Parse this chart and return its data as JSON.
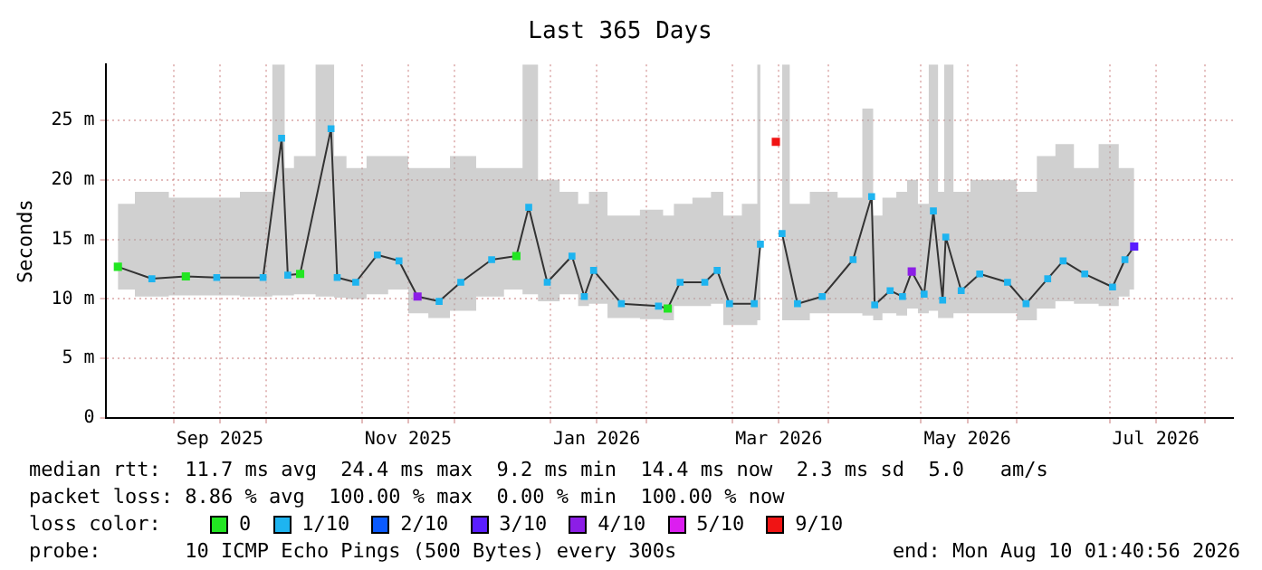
{
  "chart_data": {
    "type": "line",
    "title": "Last 365 Days",
    "ylabel": "Seconds",
    "xlim": [
      "2025-08-10",
      "2026-08-10"
    ],
    "xticks": [
      {
        "value": "2025-09-01",
        "label": null
      },
      {
        "value": "2025-09-16",
        "label": "Sep 2025"
      },
      {
        "value": "2025-10-01",
        "label": null
      },
      {
        "value": "2025-11-01",
        "label": null
      },
      {
        "value": "2025-11-16",
        "label": "Nov 2025"
      },
      {
        "value": "2025-12-01",
        "label": null
      },
      {
        "value": "2026-01-01",
        "label": null
      },
      {
        "value": "2026-01-16",
        "label": "Jan 2026"
      },
      {
        "value": "2026-02-01",
        "label": null
      },
      {
        "value": "2026-03-01",
        "label": null
      },
      {
        "value": "2026-03-16",
        "label": "Mar 2026"
      },
      {
        "value": "2026-04-01",
        "label": null
      },
      {
        "value": "2026-05-01",
        "label": null
      },
      {
        "value": "2026-05-16",
        "label": "May 2026"
      },
      {
        "value": "2026-06-01",
        "label": null
      },
      {
        "value": "2026-07-01",
        "label": null
      },
      {
        "value": "2026-07-16",
        "label": "Jul 2026"
      },
      {
        "value": "2026-08-01",
        "label": null
      }
    ],
    "ylim": [
      0,
      29.7
    ],
    "yticks": [
      0,
      {
        "value": 5,
        "label": "5 m"
      },
      {
        "value": 10,
        "label": "10 m"
      },
      {
        "value": 15,
        "label": "15 m"
      },
      {
        "value": 20,
        "label": "20 m"
      },
      {
        "value": 25,
        "label": "25 m"
      }
    ],
    "grid": true,
    "legend": "bottom",
    "legend_title": "loss color:",
    "marker": "square",
    "line_style": "solid",
    "annotations": [
      "median rtt:  11.7 ms avg  24.4 ms max  9.2 ms min  14.4 ms now  2.3 ms sd  5.0   am/s",
      "packet loss: 8.86 % avg  100.00 % max  0.00 % min  100.00 % now",
      "probe:       10 ICMP Echo Pings (500 Bytes) every 300s",
      "end: Mon Aug 10 01:40:56 2026"
    ],
    "x": [
      "2025-08-14",
      "2025-08-25",
      "2025-09-05",
      "2025-09-15",
      "2025-09-30",
      "2025-10-06",
      "2025-10-08",
      "2025-10-12",
      "2025-10-22",
      "2025-10-24",
      "2025-10-30",
      "2025-11-06",
      "2025-11-13",
      "2025-11-19",
      "2025-11-26",
      "2025-12-03",
      "2025-12-13",
      "2025-12-21",
      "2025-12-25",
      "2025-12-31",
      "2026-01-08",
      "2026-01-12",
      "2026-01-15",
      "2026-01-24",
      "2026-02-05",
      "2026-02-08",
      "2026-02-12",
      "2026-02-20",
      "2026-02-24",
      "2026-02-28",
      "2026-03-08",
      "2026-03-10",
      "2026-03-15",
      "2026-03-17",
      "2026-03-22",
      "2026-03-30",
      "2026-04-09",
      "2026-04-15",
      "2026-04-16",
      "2026-04-21",
      "2026-04-25",
      "2026-04-28",
      "2026-05-02",
      "2026-05-05",
      "2026-05-08",
      "2026-05-09",
      "2026-05-14",
      "2026-05-20",
      "2026-05-29",
      "2026-06-04",
      "2026-06-11",
      "2026-06-16",
      "2026-06-23",
      "2026-07-02",
      "2026-07-06",
      "2026-07-09"
    ],
    "series": [
      {
        "name": "0",
        "type": "scatter",
        "color": "#22e622",
        "x": [
          "2025-08-14",
          "2025-09-05",
          "2025-10-12",
          "2025-12-21",
          "2026-02-08"
        ],
        "values": [
          12.7,
          11.9,
          12.1,
          13.6,
          9.2
        ]
      },
      {
        "name": "1/10",
        "color": "#1eb4f0",
        "values": [
          12.7,
          11.7,
          11.9,
          11.8,
          11.8,
          23.5,
          12,
          12.1,
          24.3,
          11.8,
          11.4,
          13.7,
          13.2,
          10.2,
          9.8,
          11.4,
          13.3,
          13.6,
          17.7,
          11.4,
          13.6,
          10.2,
          12.4,
          9.6,
          9.4,
          9.2,
          11.4,
          11.4,
          12.4,
          9.6,
          9.6,
          14.6,
          null,
          15.5,
          9.6,
          10.2,
          13.3,
          18.6,
          9.5,
          10.7,
          10.2,
          12.3,
          10.4,
          17.4,
          9.9,
          15.2,
          10.7,
          12.1,
          11.4,
          9.6,
          11.7,
          13.2,
          12.1,
          11,
          13.3,
          14.4
        ],
        "lower": [
          10.8,
          10.2,
          10.3,
          10.3,
          10.2,
          10.3,
          10.3,
          10.4,
          10.2,
          10.1,
          10,
          10.4,
          10.8,
          8.8,
          8.4,
          9,
          10.2,
          10.8,
          10.4,
          9.8,
          10.4,
          9.4,
          9.6,
          8.4,
          8.3,
          8.2,
          9.4,
          9.4,
          9.6,
          7.8,
          7.8,
          8.2,
          null,
          8.2,
          8.2,
          8.8,
          8.8,
          8.6,
          8.2,
          8.8,
          8.6,
          9.2,
          8.8,
          9,
          8.4,
          8.4,
          8.8,
          8.8,
          8.8,
          8.2,
          9.2,
          9.8,
          9.6,
          9.4,
          10.2,
          10.8
        ],
        "upper": [
          18,
          19,
          18.5,
          18.5,
          19,
          29.7,
          21,
          22,
          29.7,
          22,
          21,
          22,
          22,
          21,
          21,
          22,
          21,
          21,
          29.7,
          20,
          19,
          18,
          19,
          17,
          17.5,
          17,
          18,
          18.5,
          19,
          17,
          18,
          29.7,
          null,
          29.7,
          18,
          19,
          18.5,
          26,
          17,
          18.5,
          19,
          20,
          18,
          29.7,
          19,
          29.7,
          19,
          20,
          20,
          19,
          22,
          23,
          21,
          23,
          21,
          21
        ]
      },
      {
        "name": "2/10",
        "type": "scatter",
        "color": "#0a5aff",
        "values": [
          null,
          null,
          null,
          null,
          null,
          null,
          null,
          null,
          null,
          null,
          null,
          null,
          null,
          null,
          null,
          null,
          null,
          null,
          null,
          null,
          null,
          null,
          null,
          null,
          null,
          null,
          null,
          null,
          null,
          null,
          null,
          null,
          null,
          null,
          null,
          null,
          null,
          null,
          null,
          null,
          null,
          null,
          null,
          null,
          null,
          null,
          null,
          null,
          null,
          null,
          null,
          null,
          null,
          null,
          null,
          null
        ]
      },
      {
        "name": "3/10",
        "type": "scatter",
        "color": "#5a1eff",
        "x": [
          "2026-07-09"
        ],
        "values": [
          14.4
        ]
      },
      {
        "name": "4/10",
        "type": "scatter",
        "color": "#8c1ee6",
        "x": [
          "2025-11-19",
          "2026-04-28"
        ],
        "values": [
          10.2,
          12.3
        ]
      },
      {
        "name": "5/10",
        "type": "scatter",
        "color": "#dc1ef0",
        "values": [
          null,
          null,
          null,
          null,
          null,
          null,
          null,
          null,
          null,
          null,
          null,
          null,
          null,
          null,
          null,
          null,
          null,
          null,
          null,
          null,
          null,
          null,
          null,
          null,
          null,
          null,
          null,
          null,
          null,
          null,
          null,
          null,
          null,
          null,
          null,
          null,
          null,
          null,
          null,
          null,
          null,
          null,
          null,
          null,
          null,
          null,
          null,
          null,
          null,
          null,
          null,
          null,
          null,
          null,
          null,
          null
        ]
      },
      {
        "name": "9/10",
        "type": "scatter",
        "color": "#f01414",
        "x": [
          "2026-03-15"
        ],
        "values": [
          23.2
        ]
      }
    ]
  }
}
